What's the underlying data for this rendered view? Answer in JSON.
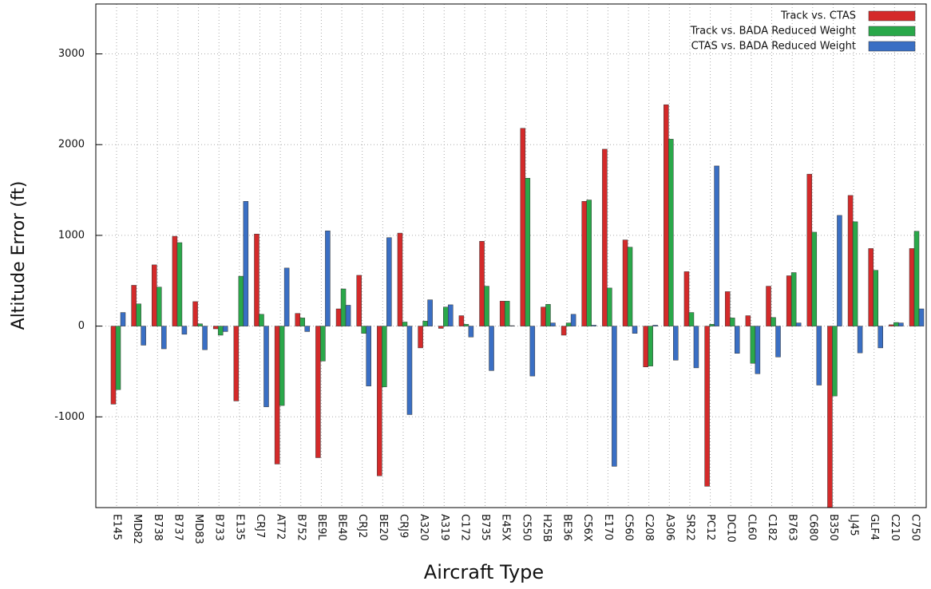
{
  "chart_data": {
    "type": "bar",
    "xlabel": "Aircraft Type",
    "ylabel": "Altitude Error (ft)",
    "categories": [
      "E145",
      "MD82",
      "B738",
      "B737",
      "MD83",
      "B733",
      "E135",
      "CRJ7",
      "AT72",
      "B752",
      "BE9L",
      "BE40",
      "CRJ2",
      "BE20",
      "CRJ9",
      "A320",
      "A319",
      "C172",
      "B735",
      "E45X",
      "C550",
      "H25B",
      "BE36",
      "C56X",
      "E170",
      "C560",
      "C208",
      "A306",
      "SR22",
      "PC12",
      "DC10",
      "CL60",
      "C182",
      "B763",
      "C680",
      "B350",
      "LJ45",
      "GLF4",
      "C210",
      "C750"
    ],
    "series": [
      {
        "name": "Track vs. CTAS",
        "color": "#d42a2a",
        "values": [
          -860,
          450,
          675,
          990,
          270,
          -30,
          -825,
          1015,
          -1520,
          140,
          -1450,
          190,
          560,
          -1650,
          1025,
          -240,
          -25,
          115,
          935,
          275,
          2180,
          210,
          -100,
          1375,
          1950,
          950,
          -450,
          2440,
          600,
          -1765,
          380,
          115,
          440,
          555,
          1675,
          -2050,
          1440,
          855,
          15,
          855
        ]
      },
      {
        "name": "Track vs. BADA Reduced Weight",
        "color": "#2aa84a",
        "values": [
          -700,
          245,
          430,
          920,
          25,
          -100,
          550,
          130,
          -875,
          90,
          -385,
          410,
          -80,
          -670,
          45,
          55,
          210,
          20,
          440,
          275,
          1630,
          240,
          35,
          1390,
          420,
          870,
          -440,
          2060,
          150,
          20,
          90,
          -410,
          95,
          590,
          1035,
          -770,
          1150,
          615,
          40,
          1045
        ]
      },
      {
        "name": "CTAS vs. BADA Reduced Weight",
        "color": "#3a6fc4",
        "values": [
          150,
          -210,
          -250,
          -90,
          -260,
          -60,
          1375,
          -890,
          640,
          -60,
          1050,
          230,
          -660,
          975,
          -975,
          290,
          235,
          -120,
          -490,
          5,
          -550,
          35,
          130,
          10,
          -1545,
          -80,
          10,
          -375,
          -460,
          1765,
          -300,
          -525,
          -340,
          35,
          -650,
          1220,
          -295,
          -240,
          35,
          190
        ]
      }
    ],
    "ylim": [
      -2000,
      3550
    ],
    "yticks": [
      -1000,
      0,
      1000,
      2000,
      3000
    ],
    "grid": true,
    "legend": "top-right"
  }
}
